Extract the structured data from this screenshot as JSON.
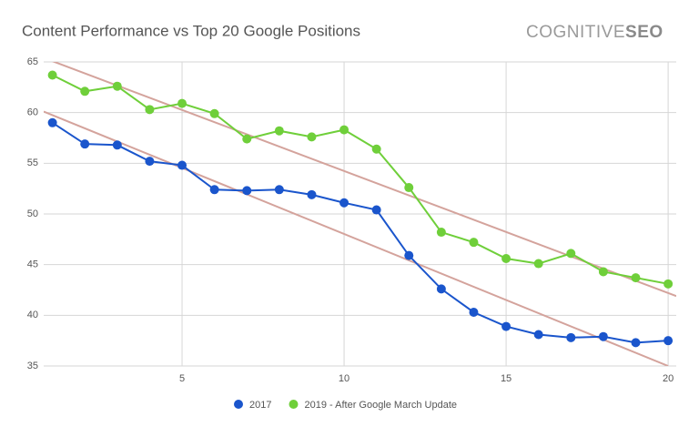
{
  "chart_data": {
    "type": "line",
    "title": "Content Performance vs Top 20 Google Positions",
    "brand": [
      "COGNITIVE",
      "SEO"
    ],
    "x": [
      1,
      2,
      3,
      4,
      5,
      6,
      7,
      8,
      9,
      10,
      11,
      12,
      13,
      14,
      15,
      16,
      17,
      18,
      19,
      20
    ],
    "xlim": [
      0.73,
      20.25
    ],
    "xticks": [
      5,
      10,
      15,
      20
    ],
    "ylim": [
      35,
      65
    ],
    "yticks": [
      35,
      40,
      45,
      50,
      55,
      60,
      65
    ],
    "grid": true,
    "legend": "bottom",
    "series": [
      {
        "name": "2017",
        "color": "#1a55cc",
        "values": [
          59.0,
          56.9,
          56.8,
          55.2,
          54.8,
          52.4,
          52.3,
          52.4,
          51.9,
          51.1,
          50.4,
          45.9,
          42.6,
          40.3,
          38.9,
          38.1,
          37.8,
          37.9,
          37.3,
          37.5
        ]
      },
      {
        "name": "2019 - After Google March Update",
        "color": "#6fcf3a",
        "values": [
          63.7,
          62.1,
          62.6,
          60.3,
          60.9,
          59.9,
          57.4,
          58.2,
          57.6,
          58.3,
          56.4,
          52.6,
          48.2,
          47.2,
          45.6,
          45.1,
          46.1,
          44.3,
          43.7,
          43.1
        ]
      }
    ],
    "trendlines": [
      {
        "color": "#d4a39c",
        "x": [
          0.73,
          20.25
        ],
        "values": [
          65.4,
          41.9
        ]
      },
      {
        "color": "#d4a39c",
        "x": [
          0.73,
          20.0
        ],
        "values": [
          60.1,
          35.0
        ]
      }
    ]
  }
}
